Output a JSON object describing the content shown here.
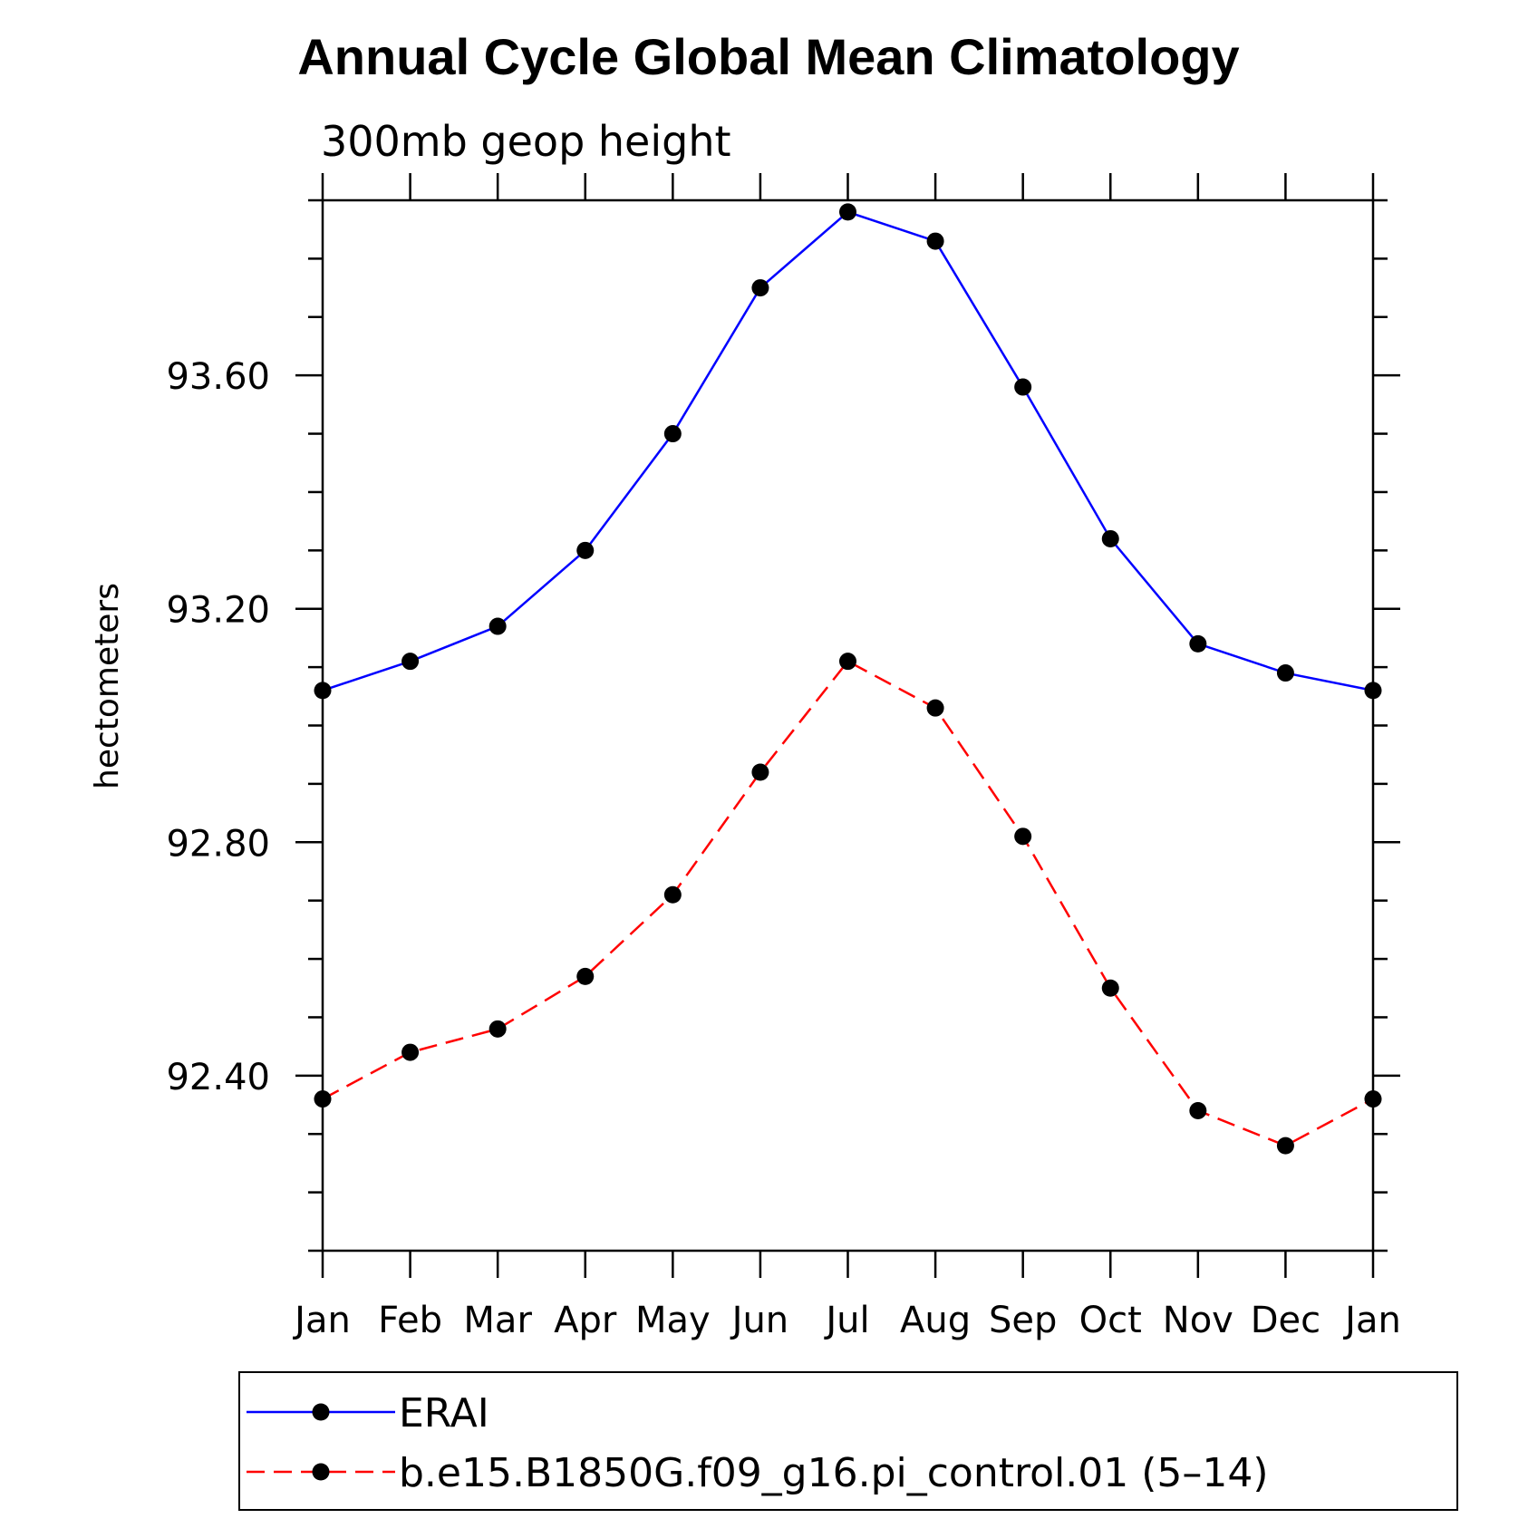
{
  "chart_data": {
    "type": "line",
    "title": "Annual Cycle Global Mean Climatology",
    "subtitle": "300mb geop height",
    "xlabel": "",
    "ylabel": "hectometers",
    "categories": [
      "Jan",
      "Feb",
      "Mar",
      "Apr",
      "May",
      "Jun",
      "Jul",
      "Aug",
      "Sep",
      "Oct",
      "Nov",
      "Dec",
      "Jan"
    ],
    "ylim": [
      92.1,
      93.9
    ],
    "yticks": [
      92.4,
      92.8,
      93.2,
      93.6
    ],
    "ytick_labels": [
      "92.40",
      "92.80",
      "93.20",
      "93.60"
    ],
    "grid": false,
    "legend_position": "bottom",
    "series": [
      {
        "name": "ERAI",
        "color": "#0000ff",
        "line_style": "solid",
        "marker": "filled-circle",
        "values": [
          93.06,
          93.11,
          93.17,
          93.3,
          93.5,
          93.75,
          93.88,
          93.83,
          93.58,
          93.32,
          93.14,
          93.09,
          93.06
        ]
      },
      {
        "name": "b.e15.B1850G.f09_g16.pi_control.01 (5–14)",
        "color": "#ff0000",
        "line_style": "dashed",
        "marker": "filled-circle",
        "values": [
          92.36,
          92.44,
          92.48,
          92.57,
          92.71,
          92.92,
          93.11,
          93.03,
          92.81,
          92.55,
          92.34,
          92.28,
          92.36
        ]
      }
    ]
  }
}
